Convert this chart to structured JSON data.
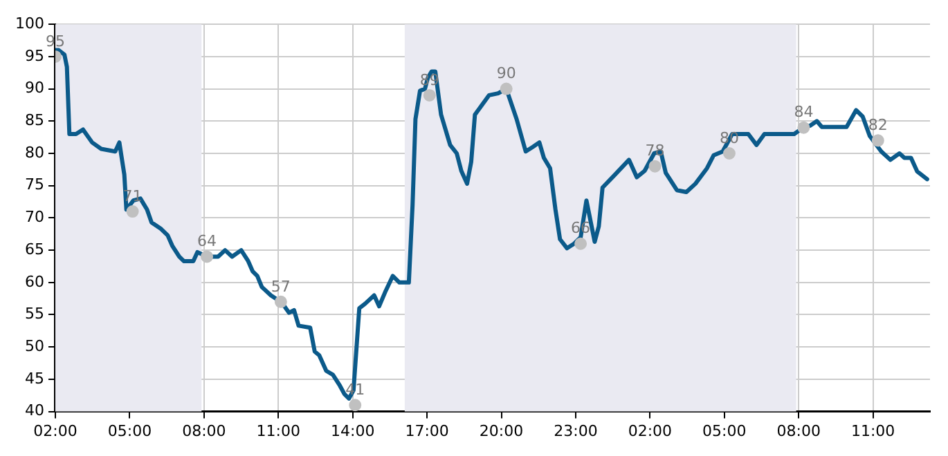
{
  "chart_data": {
    "type": "line",
    "xlim": [
      "--01-01T02:00",
      "--01-02T13:18"
    ],
    "ylim": [
      40,
      100
    ],
    "xticks": [
      {
        "value": "--01-01T02:00",
        "label": "02:00"
      },
      {
        "value": "--01-01T05:00",
        "label": "05:00"
      },
      {
        "value": "--01-01T08:00",
        "label": "08:00"
      },
      {
        "value": "--01-01T11:00",
        "label": "11:00"
      },
      {
        "value": "--01-01T14:00",
        "label": "14:00"
      },
      {
        "value": "--01-01T17:00",
        "label": "17:00"
      },
      {
        "value": "--01-01T20:00",
        "label": "20:00"
      },
      {
        "value": "--01-01T23:00",
        "label": "23:00"
      },
      {
        "value": "--01-02T02:00",
        "label": "02:00"
      },
      {
        "value": "--01-02T05:00",
        "label": "05:00"
      },
      {
        "value": "--01-02T08:00",
        "label": "08:00"
      },
      {
        "value": "--01-02T11:00",
        "label": "11:00"
      }
    ],
    "yticks": [
      40,
      45,
      50,
      55,
      60,
      65,
      70,
      75,
      80,
      85,
      90,
      95,
      100
    ],
    "grid": true,
    "legend": false,
    "line_style": "solid",
    "bands": [
      {
        "axis": "x",
        "from": "--01-01T02:00",
        "to": "--01-01T07:54",
        "color": "#eaeaf2"
      },
      {
        "axis": "x",
        "from": "--01-01T16:06",
        "to": "--01-02T07:54",
        "color": "#eaeaf2"
      }
    ],
    "series": [
      {
        "color": "#0b5a8a",
        "marker": "none",
        "x": [
          "--01-01T02:00",
          "--01-01T02:08",
          "--01-01T02:22",
          "--01-01T02:28",
          "--01-01T02:34",
          "--01-01T02:50",
          "--01-01T03:07",
          "--01-01T03:29",
          "--01-01T03:51",
          "--01-01T04:25",
          "--01-01T04:35",
          "--01-01T04:39",
          "--01-01T04:47",
          "--01-01T04:52",
          "--01-01T05:09",
          "--01-01T05:26",
          "--01-01T05:42",
          "--01-01T05:53",
          "--01-01T06:16",
          "--01-01T06:32",
          "--01-01T06:43",
          "--01-01T07:00",
          "--01-01T07:11",
          "--01-01T07:34",
          "--01-01T07:44",
          "--01-01T08:07",
          "--01-01T08:34",
          "--01-01T08:51",
          "--01-01T09:08",
          "--01-01T09:30",
          "--01-01T09:47",
          "--01-01T09:58",
          "--01-01T10:09",
          "--01-01T10:20",
          "--01-01T10:42",
          "--01-01T11:08",
          "--01-01T11:26",
          "--01-01T11:38",
          "--01-01T11:49",
          "--01-01T12:17",
          "--01-01T12:28",
          "--01-01T12:39",
          "--01-01T12:56",
          "--01-01T13:12",
          "--01-01T13:29",
          "--01-01T13:40",
          "--01-01T13:51",
          "--01-01T14:02",
          "--01-01T14:16",
          "--01-01T14:30",
          "--01-01T14:52",
          "--01-01T15:04",
          "--01-01T15:20",
          "--01-01T15:37",
          "--01-01T15:53",
          "--01-01T16:16",
          "--01-01T16:25",
          "--01-01T16:32",
          "--01-01T16:43",
          "--01-01T16:55",
          "--01-01T17:02",
          "--01-01T17:11",
          "--01-01T17:20",
          "--01-01T17:34",
          "--01-01T17:56",
          "--01-01T18:12",
          "--01-01T18:23",
          "--01-01T18:37",
          "--01-01T18:47",
          "--01-01T18:56",
          "--01-01T19:30",
          "--01-01T19:52",
          "--01-01T20:12",
          "--01-01T20:37",
          "--01-01T20:59",
          "--01-01T21:16",
          "--01-01T21:32",
          "--01-01T21:43",
          "--01-01T21:58",
          "--01-01T22:11",
          "--01-01T22:22",
          "--01-01T22:39",
          "--01-01T22:56",
          "--01-01T23:12",
          "--01-01T23:26",
          "--01-01T23:46",
          "--01-01T23:56",
          "--01-02T00:05",
          "--01-02T00:35",
          "--01-02T01:09",
          "--01-02T01:28",
          "--01-02T01:47",
          "--01-02T02:10",
          "--01-02T02:26",
          "--01-02T02:38",
          "--01-02T03:05",
          "--01-02T03:28",
          "--01-02T03:50",
          "--01-02T04:18",
          "--01-02T04:34",
          "--01-02T04:56",
          "--01-02T05:19",
          "--01-02T05:58",
          "--01-02T06:18",
          "--01-02T06:37",
          "--01-02T07:49",
          "--01-02T08:11",
          "--01-02T08:28",
          "--01-02T08:44",
          "--01-02T08:56",
          "--01-02T09:56",
          "--01-02T10:19",
          "--01-02T10:35",
          "--01-02T10:52",
          "--01-02T11:20",
          "--01-02T11:42",
          "--01-02T12:04",
          "--01-02T12:16",
          "--01-02T12:32",
          "--01-02T12:47",
          "--01-02T13:11"
        ],
        "values": [
          96,
          96,
          95.3,
          93.4,
          83,
          83,
          83.7,
          81.7,
          80.7,
          80.3,
          81.7,
          80,
          76.7,
          71.3,
          72.7,
          73,
          71.3,
          69.3,
          68.3,
          67.3,
          65.7,
          64,
          63.3,
          63.3,
          64.7,
          64,
          64,
          65,
          64,
          65,
          63.3,
          61.7,
          61,
          59.3,
          58,
          56.9,
          55.3,
          55.7,
          53.3,
          53,
          49.3,
          48.7,
          46.3,
          45.7,
          44,
          42.7,
          42,
          43.3,
          56,
          56.7,
          58,
          56.3,
          58.7,
          61,
          60,
          60,
          72,
          85.3,
          89.7,
          90,
          91.7,
          92.7,
          92.7,
          86,
          81.3,
          80,
          77.3,
          75.3,
          78.7,
          86,
          89,
          89.3,
          90,
          85.3,
          80.3,
          81,
          81.7,
          79.3,
          77.7,
          71.3,
          66.7,
          65.3,
          66,
          67,
          72.7,
          66.3,
          68.7,
          74.7,
          76.7,
          79,
          76.3,
          77.3,
          80,
          80.3,
          77,
          74.3,
          74,
          75.3,
          77.7,
          79.7,
          80.3,
          83,
          83,
          81.3,
          83,
          83,
          84,
          84.3,
          85,
          84.1,
          84.1,
          86.7,
          85.7,
          82.7,
          80.3,
          79,
          80,
          79.3,
          79.3,
          77.2,
          76
        ]
      },
      {
        "type": "scatter",
        "color": "#c0c0c0",
        "marker": "circle",
        "x": [
          "--01-01T02:00",
          "--01-01T05:07",
          "--01-01T08:07",
          "--01-01T11:06",
          "--01-01T14:06",
          "--01-01T17:06",
          "--01-01T20:12",
          "--01-01T23:12",
          "--01-02T02:12",
          "--01-02T05:12",
          "--01-02T08:12",
          "--01-02T11:12"
        ],
        "values": [
          95,
          71,
          64,
          57,
          41,
          89,
          90,
          66,
          78,
          80,
          84,
          82
        ],
        "value_labels": [
          "95",
          "71",
          "64",
          "57",
          "41",
          "89",
          "90",
          "66",
          "78",
          "80",
          "84",
          "82"
        ]
      }
    ]
  }
}
